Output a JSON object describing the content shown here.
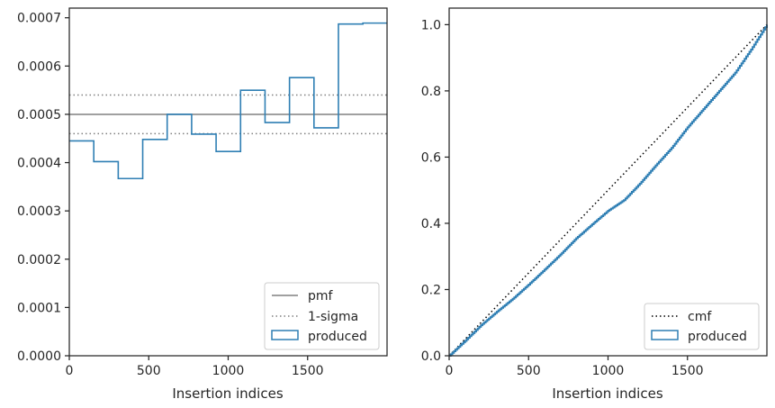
{
  "chart_data": [
    {
      "type": "histogram-step",
      "xlabel": "Insertion indices",
      "ylabel": "",
      "xlim": [
        0,
        2000
      ],
      "ylim": [
        0,
        0.00072
      ],
      "xticks": [
        0,
        500,
        1000,
        1500
      ],
      "yticks": [
        0,
        0.0001,
        0.0002,
        0.0003,
        0.0004,
        0.0005,
        0.0006,
        0.0007
      ],
      "ytick_labels": [
        "0.0000",
        "0.0001",
        "0.0002",
        "0.0003",
        "0.0004",
        "0.0005",
        "0.0006",
        "0.0007"
      ],
      "bin_edges": [
        0,
        154,
        308,
        462,
        616,
        770,
        924,
        1078,
        1232,
        1386,
        1540,
        1694,
        1848,
        2000
      ],
      "series": [
        {
          "name": "pmf",
          "style": "solid",
          "color": "#808080",
          "y": 0.0005
        },
        {
          "name": "1-sigma",
          "style": "dotted",
          "color": "#808080",
          "y": [
            0.00046,
            0.00054
          ]
        },
        {
          "name": "produced",
          "style": "step",
          "color": "#2f7fb4",
          "values": [
            0.000445,
            0.000402,
            0.000367,
            0.000448,
            0.0005,
            0.000459,
            0.000423,
            0.00055,
            0.000483,
            0.000576,
            0.000472,
            0.000687,
            0.000689
          ]
        }
      ],
      "legend": {
        "placement": "lower-right",
        "entries": [
          "pmf",
          "1-sigma",
          "produced"
        ]
      },
      "grid": false
    },
    {
      "type": "cumulative-step",
      "xlabel": "Insertion indices",
      "ylabel": "",
      "xlim": [
        0,
        2000
      ],
      "ylim": [
        0,
        1.05
      ],
      "xticks": [
        0,
        500,
        1000,
        1500
      ],
      "yticks": [
        0,
        0.2,
        0.4,
        0.6,
        0.8,
        1.0
      ],
      "ytick_labels": [
        "0.0",
        "0.2",
        "0.4",
        "0.6",
        "0.8",
        "1.0"
      ],
      "series": [
        {
          "name": "cmf",
          "style": "dotted",
          "color": "#000000",
          "x": [
            0,
            2000
          ],
          "y": [
            0,
            1.0
          ]
        },
        {
          "name": "produced",
          "style": "step",
          "color": "#2f7fb4",
          "x": [
            0,
            100,
            200,
            300,
            400,
            500,
            600,
            700,
            800,
            900,
            1000,
            1100,
            1200,
            1300,
            1400,
            1500,
            1600,
            1700,
            1800,
            1900,
            2000
          ],
          "y": [
            0,
            0.045,
            0.092,
            0.133,
            0.172,
            0.215,
            0.26,
            0.306,
            0.355,
            0.397,
            0.438,
            0.47,
            0.52,
            0.575,
            0.628,
            0.69,
            0.745,
            0.8,
            0.855,
            0.925,
            1.0
          ]
        }
      ],
      "legend": {
        "placement": "lower-right",
        "entries": [
          "cmf",
          "produced"
        ]
      },
      "grid": false
    }
  ]
}
